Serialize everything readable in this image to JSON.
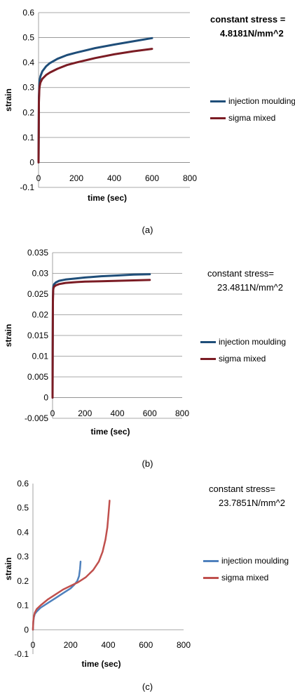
{
  "chart_data": [
    {
      "type": "line",
      "title": "",
      "xlabel": "time (sec)",
      "ylabel": "strain",
      "xlim": [
        0,
        800
      ],
      "ylim": [
        -0.1,
        0.6
      ],
      "xticks": [
        "0",
        "200",
        "400",
        "600",
        "800"
      ],
      "yticks": [
        "-0.1",
        "0",
        "0.1",
        "0.2",
        "0.3",
        "0.4",
        "0.5",
        "0.6"
      ],
      "annotation": [
        "constant stress =",
        "4.8181N/mm^2"
      ],
      "legend": "right",
      "grid": true,
      "caption": "(a)",
      "series": [
        {
          "name": "injection moulding",
          "color": "#1f4e79",
          "x": [
            0,
            1,
            2,
            4,
            6,
            10,
            20,
            40,
            60,
            100,
            150,
            200,
            300,
            400,
            500,
            600
          ],
          "y": [
            0,
            0.15,
            0.26,
            0.31,
            0.33,
            0.345,
            0.365,
            0.385,
            0.398,
            0.415,
            0.43,
            0.44,
            0.458,
            0.472,
            0.485,
            0.498
          ]
        },
        {
          "name": "sigma mixed",
          "color": "#7b1c24",
          "x": [
            0,
            1,
            2,
            4,
            6,
            10,
            20,
            40,
            60,
            100,
            150,
            200,
            300,
            400,
            500,
            600
          ],
          "y": [
            0,
            0.12,
            0.24,
            0.29,
            0.305,
            0.32,
            0.335,
            0.35,
            0.36,
            0.375,
            0.39,
            0.4,
            0.418,
            0.433,
            0.445,
            0.455
          ]
        }
      ]
    },
    {
      "type": "line",
      "title": "",
      "xlabel": "time (sec)",
      "ylabel": "strain",
      "xlim": [
        0,
        800
      ],
      "ylim": [
        -0.005,
        0.035
      ],
      "xticks": [
        "0",
        "200",
        "400",
        "600",
        "800"
      ],
      "yticks": [
        "-0.005",
        "0",
        "0.005",
        "0.01",
        "0.015",
        "0.02",
        "0.025",
        "0.03",
        "0.035"
      ],
      "annotation": [
        "constant stress=",
        "23.4811N/mm^2"
      ],
      "legend": "right",
      "grid": true,
      "caption": "(b)",
      "series": [
        {
          "name": "injection moulding",
          "color": "#1f4e79",
          "x": [
            0,
            1,
            2,
            4,
            6,
            10,
            20,
            40,
            80,
            150,
            200,
            300,
            400,
            500,
            600
          ],
          "y": [
            0,
            0.012,
            0.024,
            0.0265,
            0.027,
            0.0274,
            0.0278,
            0.0282,
            0.0285,
            0.0288,
            0.029,
            0.0293,
            0.0295,
            0.0297,
            0.0298
          ]
        },
        {
          "name": "sigma mixed",
          "color": "#7b1c24",
          "x": [
            0,
            1,
            2,
            4,
            6,
            10,
            20,
            40,
            80,
            150,
            200,
            300,
            400,
            500,
            600
          ],
          "y": [
            0,
            0.011,
            0.023,
            0.026,
            0.0265,
            0.0268,
            0.0271,
            0.0274,
            0.0277,
            0.0279,
            0.028,
            0.0281,
            0.0282,
            0.0283,
            0.0284
          ]
        }
      ]
    },
    {
      "type": "line",
      "title": "",
      "xlabel": "time (sec)",
      "ylabel": "strain",
      "xlim": [
        0,
        800
      ],
      "ylim": [
        -0.1,
        0.6
      ],
      "xticks": [
        "0",
        "200",
        "400",
        "600",
        "800"
      ],
      "yticks": [
        "-0.1",
        "0",
        "0.1",
        "0.2",
        "0.3",
        "0.4",
        "0.5",
        "0.6"
      ],
      "annotation": [
        "constant stress=",
        "23.7851N/mm^2"
      ],
      "legend": "right",
      "grid": false,
      "caption": "(c)",
      "series": [
        {
          "name": "injection moulding",
          "color": "#4f81bd",
          "x": [
            0,
            2,
            5,
            10,
            20,
            40,
            80,
            120,
            160,
            200,
            220,
            235,
            245,
            250,
            253
          ],
          "y": [
            0,
            0.03,
            0.05,
            0.065,
            0.075,
            0.09,
            0.11,
            0.13,
            0.15,
            0.17,
            0.185,
            0.2,
            0.22,
            0.25,
            0.28
          ]
        },
        {
          "name": "sigma mixed",
          "color": "#c0504d",
          "x": [
            0,
            2,
            5,
            10,
            20,
            40,
            80,
            120,
            160,
            200,
            240,
            280,
            320,
            350,
            370,
            385,
            395,
            402,
            407
          ],
          "y": [
            0,
            0.035,
            0.055,
            0.07,
            0.085,
            0.1,
            0.125,
            0.145,
            0.165,
            0.18,
            0.195,
            0.215,
            0.245,
            0.28,
            0.32,
            0.37,
            0.42,
            0.48,
            0.53
          ]
        }
      ]
    }
  ]
}
